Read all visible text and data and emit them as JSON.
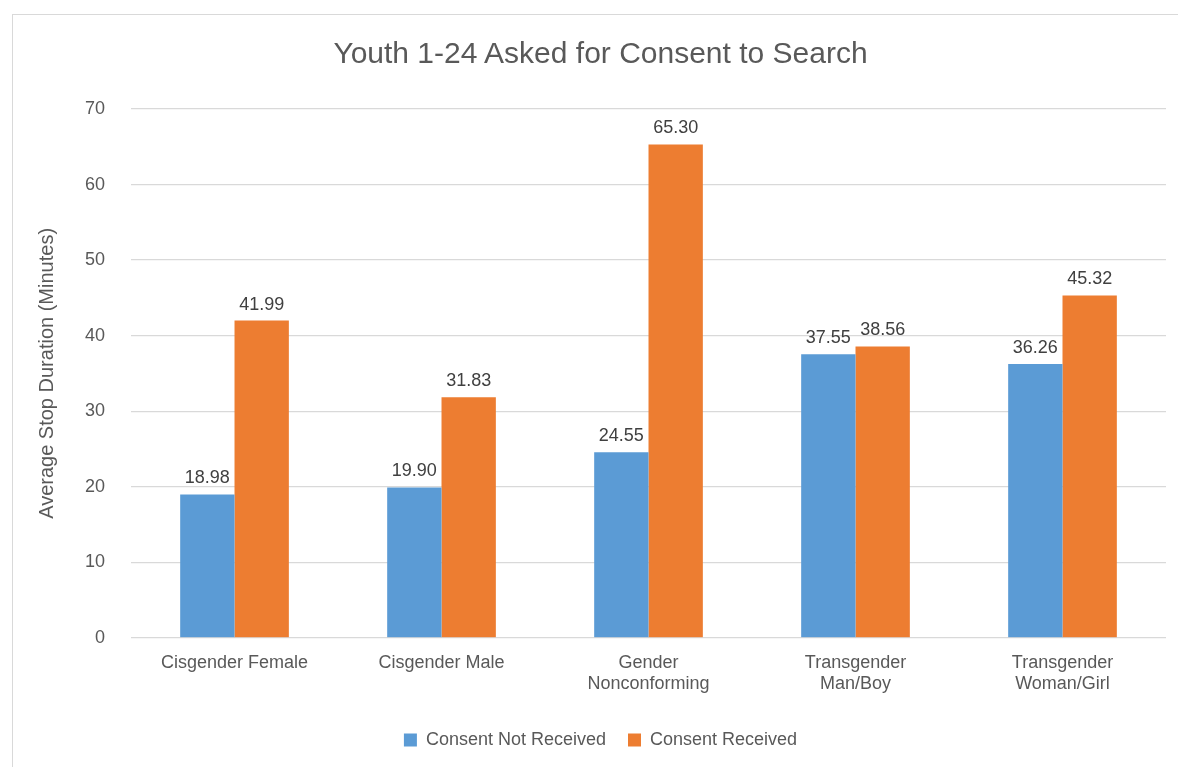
{
  "chart_data": {
    "type": "bar",
    "title": "Youth 1-24 Asked for Consent to Search",
    "ylabel": "Average Stop Duration (Minutes)",
    "categories": [
      "Cisgender Female",
      "Cisgender Male",
      "Gender Nonconforming",
      "Transgender Man/Boy",
      "Transgender Woman/Girl"
    ],
    "series": [
      {
        "name": "Consent Not Received",
        "color": "#5b9bd5",
        "values": [
          18.98,
          19.9,
          24.55,
          37.55,
          36.26
        ],
        "value_labels": [
          "18.98",
          "19.90",
          "24.55",
          "37.55",
          "36.26"
        ]
      },
      {
        "name": "Consent Received",
        "color": "#ed7d31",
        "values": [
          41.99,
          31.83,
          65.3,
          38.56,
          45.32
        ],
        "value_labels": [
          "41.99",
          "31.83",
          "65.30",
          "38.56",
          "45.32"
        ]
      }
    ],
    "ylim": [
      0,
      70
    ],
    "yticks": [
      0,
      10,
      20,
      30,
      40,
      50,
      60,
      70
    ],
    "grid": "y",
    "legend": "bottom"
  }
}
